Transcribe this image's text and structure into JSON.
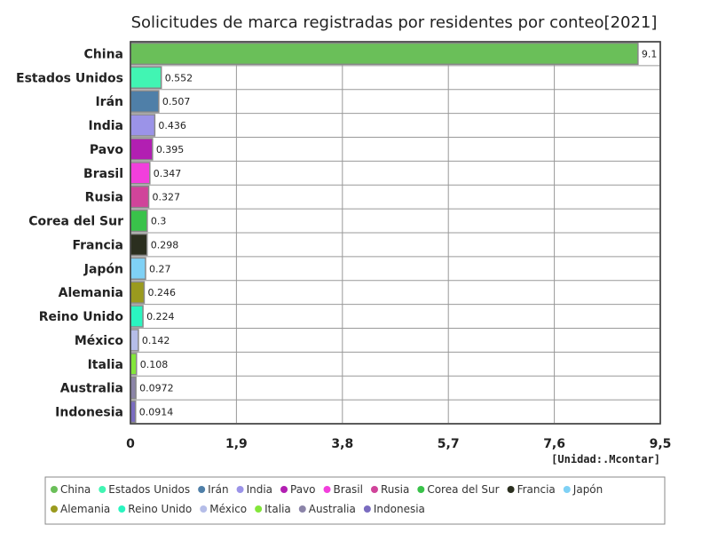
{
  "chart_data": {
    "type": "bar",
    "orientation": "horizontal",
    "title": "Solicitudes de marca registradas por residentes por conteo[2021]",
    "unit_label": "[Unidad:.Mcontar]",
    "xlim": [
      0,
      9.5
    ],
    "x_ticks": [
      0,
      1.9,
      3.8,
      5.7,
      7.6,
      9.5
    ],
    "x_tick_labels": [
      "0",
      "1,9",
      "3,8",
      "5,7",
      "7,6",
      "9,5"
    ],
    "categories": [
      "China",
      "Estados Unidos",
      "Irán",
      "India",
      "Pavo",
      "Brasil",
      "Rusia",
      "Corea del Sur",
      "Francia",
      "Japón",
      "Alemania",
      "Reino Unido",
      "México",
      "Italia",
      "Australia",
      "Indonesia"
    ],
    "values": [
      9.1,
      0.552,
      0.507,
      0.436,
      0.395,
      0.347,
      0.327,
      0.3,
      0.298,
      0.27,
      0.246,
      0.224,
      0.142,
      0.108,
      0.0972,
      0.0914
    ],
    "value_labels": [
      "9.1",
      "0.552",
      "0.507",
      "0.436",
      "0.395",
      "0.347",
      "0.327",
      "0.3",
      "0.298",
      "0.27",
      "0.246",
      "0.224",
      "0.142",
      "0.108",
      "0.0972",
      "0.0914"
    ],
    "colors": [
      "#6abf59",
      "#41f5b3",
      "#4f7fa8",
      "#9b93e8",
      "#b21fb2",
      "#f23fdc",
      "#d0449a",
      "#39c24a",
      "#2b2f1f",
      "#7fd1f5",
      "#9a9a1e",
      "#2af5c0",
      "#b5bde8",
      "#83e63a",
      "#8b84a8",
      "#7a6cc0"
    ],
    "legend": [
      "China",
      "Estados Unidos",
      "Irán",
      "India",
      "Pavo",
      "Brasil",
      "Rusia",
      "Corea del Sur",
      "Francia",
      "Japón",
      "Alemania",
      "Reino Unido",
      "México",
      "Italia",
      "Australia",
      "Indonesia"
    ],
    "legend_position": "bottom",
    "grid": true
  }
}
